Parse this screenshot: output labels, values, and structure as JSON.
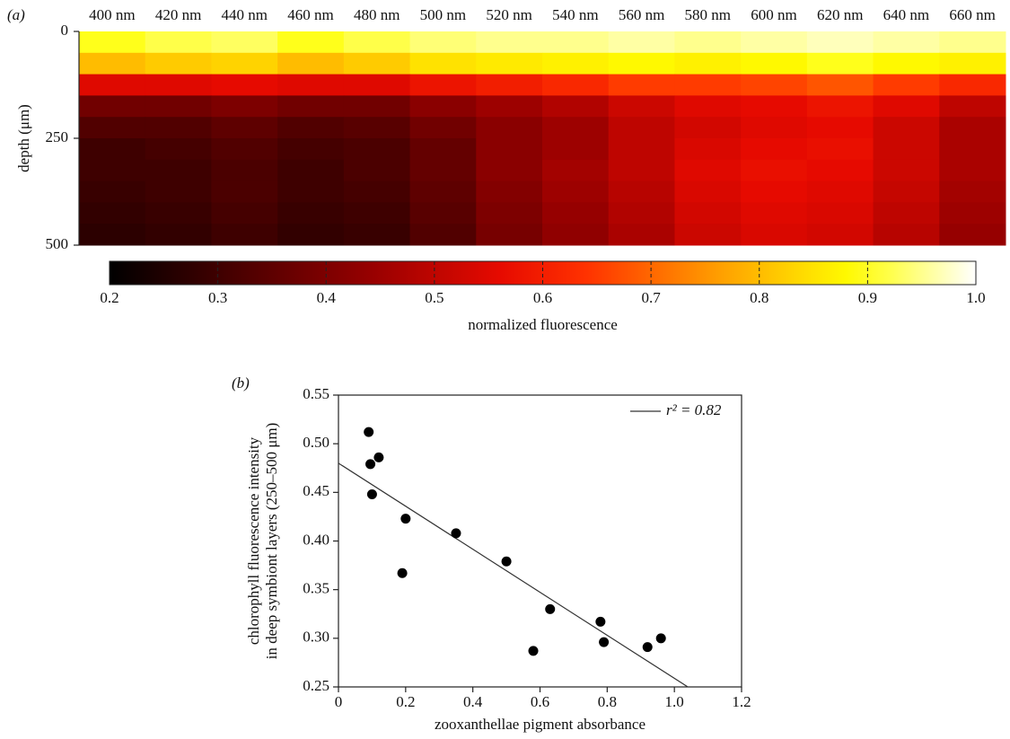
{
  "chart_data": [
    {
      "type": "heatmap",
      "panel": "(a)",
      "categories": [
        "400 nm",
        "420 nm",
        "440 nm",
        "460 nm",
        "480 nm",
        "500 nm",
        "520 nm",
        "540 nm",
        "560 nm",
        "580 nm",
        "600 nm",
        "620 nm",
        "640 nm",
        "660 nm"
      ],
      "ylabel": "depth (μm)",
      "ylim": [
        0,
        500
      ],
      "yticks": [
        0,
        250,
        500
      ],
      "y_bins": [
        0,
        50,
        100,
        150,
        200,
        250,
        300,
        350,
        400,
        450,
        500
      ],
      "values": [
        [
          0.9,
          0.92,
          0.93,
          0.9,
          0.92,
          0.94,
          0.95,
          0.95,
          0.96,
          0.95,
          0.96,
          0.97,
          0.96,
          0.95
        ],
        [
          0.8,
          0.82,
          0.83,
          0.8,
          0.82,
          0.85,
          0.86,
          0.87,
          0.88,
          0.87,
          0.88,
          0.9,
          0.88,
          0.87
        ],
        [
          0.55,
          0.55,
          0.56,
          0.55,
          0.55,
          0.58,
          0.6,
          0.62,
          0.65,
          0.65,
          0.66,
          0.68,
          0.65,
          0.62
        ],
        [
          0.38,
          0.38,
          0.4,
          0.38,
          0.38,
          0.42,
          0.45,
          0.48,
          0.52,
          0.55,
          0.56,
          0.58,
          0.55,
          0.5
        ],
        [
          0.33,
          0.33,
          0.35,
          0.33,
          0.34,
          0.38,
          0.42,
          0.45,
          0.5,
          0.53,
          0.55,
          0.56,
          0.52,
          0.47
        ],
        [
          0.3,
          0.31,
          0.33,
          0.31,
          0.32,
          0.36,
          0.42,
          0.45,
          0.5,
          0.54,
          0.56,
          0.57,
          0.52,
          0.47
        ],
        [
          0.3,
          0.3,
          0.32,
          0.3,
          0.32,
          0.36,
          0.42,
          0.46,
          0.5,
          0.55,
          0.57,
          0.56,
          0.52,
          0.47
        ],
        [
          0.29,
          0.3,
          0.32,
          0.3,
          0.31,
          0.35,
          0.41,
          0.45,
          0.49,
          0.54,
          0.56,
          0.55,
          0.51,
          0.46
        ],
        [
          0.28,
          0.29,
          0.31,
          0.29,
          0.3,
          0.34,
          0.4,
          0.44,
          0.48,
          0.53,
          0.55,
          0.54,
          0.5,
          0.45
        ],
        [
          0.27,
          0.28,
          0.3,
          0.28,
          0.29,
          0.33,
          0.39,
          0.43,
          0.47,
          0.52,
          0.54,
          0.53,
          0.49,
          0.44
        ]
      ],
      "colorbar_label": "normalized fluorescence",
      "clim": [
        0.2,
        1
      ],
      "cticks": [
        0.2,
        0.3,
        0.4,
        0.5,
        0.6,
        0.7,
        0.8,
        0.9,
        {
          "value": 1,
          "label": "1.0"
        }
      ]
    },
    {
      "type": "scatter",
      "panel": "(b)",
      "xlabel": "zooxanthellae pigment absorbance",
      "ylabel": [
        "chlorophyll fluorescence intensity",
        "in deep symbiont layers (250–500 μm)"
      ],
      "x": [
        0.09,
        0.095,
        0.12,
        0.1,
        0.2,
        0.19,
        0.35,
        0.5,
        0.58,
        0.63,
        0.78,
        0.79,
        0.92,
        0.96
      ],
      "values": [
        0.512,
        0.479,
        0.486,
        0.448,
        0.423,
        0.367,
        0.408,
        0.379,
        0.287,
        0.33,
        0.317,
        0.296,
        0.291,
        0.3
      ],
      "color": "#000000",
      "fit": {
        "name": "r² = 0.82",
        "x": [
          0,
          1.04
        ],
        "values": [
          0.48,
          0.25
        ],
        "color": "#333333"
      },
      "xlim": [
        0,
        1.2
      ],
      "xticks": [
        0,
        0.2,
        0.4,
        0.6,
        0.8,
        {
          "value": 1,
          "label": "1.0"
        },
        1.2
      ],
      "ylim": [
        0.25,
        0.55
      ],
      "yticks": [
        0.25,
        {
          "value": 0.3,
          "label": "0.30"
        },
        0.35,
        {
          "value": 0.4,
          "label": "0.40"
        },
        0.45,
        {
          "value": 0.5,
          "label": "0.50"
        },
        0.55
      ],
      "legend": "upper right"
    }
  ]
}
